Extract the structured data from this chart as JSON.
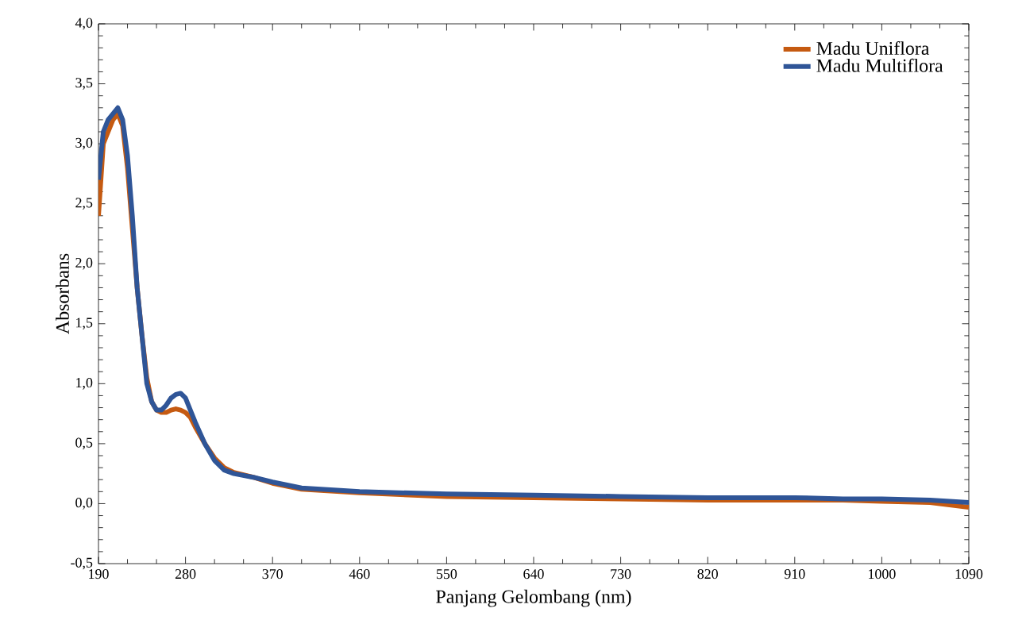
{
  "chart_data": {
    "type": "line",
    "xlabel": "Panjang Gelombang (nm)",
    "ylabel": "Absorbans",
    "xlim": [
      190,
      1090
    ],
    "ylim": [
      -0.5,
      4.0
    ],
    "xticks": [
      190,
      280,
      370,
      460,
      550,
      640,
      730,
      820,
      910,
      1000,
      1090
    ],
    "yticks": [
      {
        "value": -0.5,
        "label": "-0,5"
      },
      {
        "value": 0.0,
        "label": "0,0"
      },
      {
        "value": 0.5,
        "label": "0,5"
      },
      {
        "value": 1.0,
        "label": "1,0"
      },
      {
        "value": 1.5,
        "label": "1,5"
      },
      {
        "value": 2.0,
        "label": "2,0"
      },
      {
        "value": 2.5,
        "label": "2,5"
      },
      {
        "value": 3.0,
        "label": "3,0"
      },
      {
        "value": 3.5,
        "label": "3,5"
      },
      {
        "value": 4.0,
        "label": "4,0"
      }
    ],
    "x": [
      190,
      195,
      200,
      205,
      210,
      215,
      220,
      225,
      230,
      235,
      240,
      245,
      250,
      255,
      260,
      265,
      270,
      275,
      280,
      285,
      290,
      300,
      310,
      320,
      330,
      350,
      370,
      400,
      460,
      550,
      640,
      730,
      820,
      910,
      960,
      1000,
      1050,
      1090
    ],
    "series": [
      {
        "name": "Madu Uniflora",
        "color": "#c55a11",
        "values": [
          2.4,
          3.0,
          3.1,
          3.2,
          3.25,
          3.15,
          2.8,
          2.3,
          1.8,
          1.4,
          1.05,
          0.85,
          0.78,
          0.76,
          0.76,
          0.78,
          0.79,
          0.78,
          0.76,
          0.72,
          0.64,
          0.5,
          0.38,
          0.3,
          0.26,
          0.22,
          0.17,
          0.12,
          0.09,
          0.06,
          0.05,
          0.04,
          0.03,
          0.03,
          0.03,
          0.02,
          0.01,
          -0.03
        ]
      },
      {
        "name": "Madu Multiflora",
        "color": "#2f5597",
        "values": [
          2.7,
          3.1,
          3.2,
          3.25,
          3.3,
          3.2,
          2.9,
          2.4,
          1.8,
          1.4,
          1.0,
          0.85,
          0.78,
          0.78,
          0.82,
          0.88,
          0.91,
          0.92,
          0.88,
          0.78,
          0.68,
          0.5,
          0.36,
          0.28,
          0.25,
          0.22,
          0.18,
          0.13,
          0.1,
          0.08,
          0.07,
          0.06,
          0.05,
          0.05,
          0.04,
          0.04,
          0.03,
          0.01
        ]
      }
    ],
    "legend": "top right",
    "grid": false
  }
}
